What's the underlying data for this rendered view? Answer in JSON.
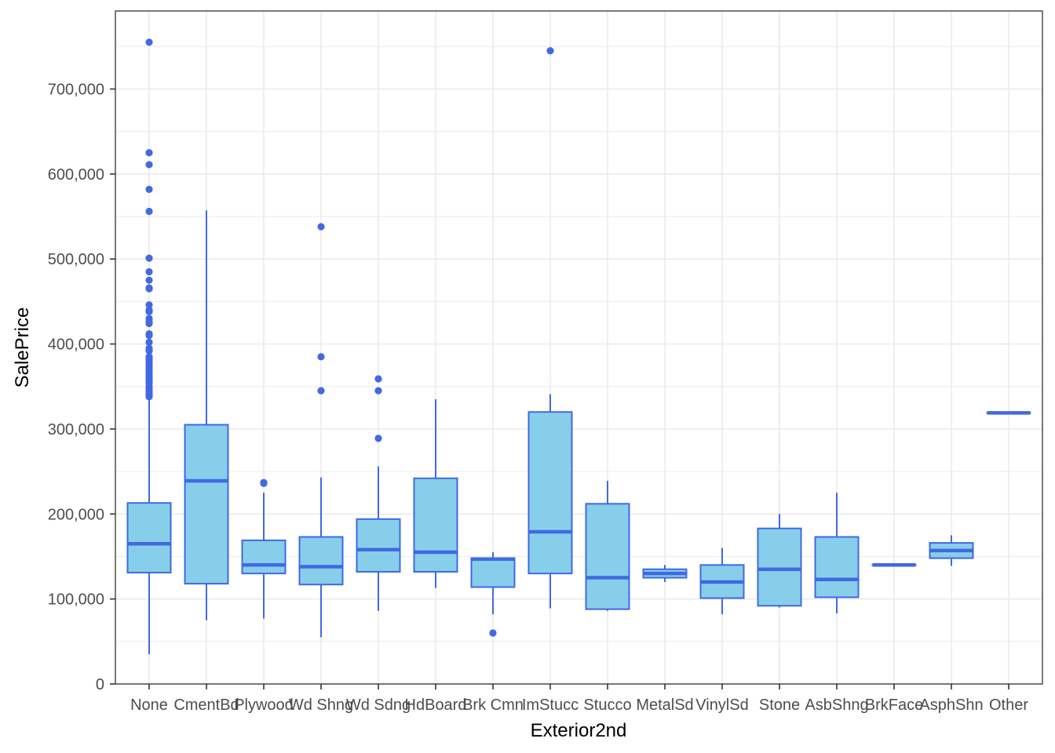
{
  "chart_data": {
    "type": "boxplot",
    "title": "",
    "xlabel": "Exterior2nd",
    "ylabel": "SalePrice",
    "ylim": [
      0,
      780000
    ],
    "yticks": [
      0,
      100000,
      200000,
      300000,
      400000,
      500000,
      600000,
      700000
    ],
    "ytick_labels": [
      "0",
      "100,000",
      "200,000",
      "300,000",
      "400,000",
      "500,000",
      "600,000",
      "700,000"
    ],
    "grid": true,
    "legend": "none",
    "colors": {
      "fill": "#87ceeb",
      "stroke": "#4169e1",
      "grid": "#ebebeb",
      "axis": "#333333"
    },
    "categories": [
      "None",
      "CmentBd",
      "Plywood",
      "Wd Shng",
      "Wd Sdng",
      "HdBoard",
      "Brk Cmn",
      "ImStucc",
      "Stucco",
      "MetalSd",
      "VinylSd",
      "Stone",
      "AsbShng",
      "BrkFace",
      "AsphShn",
      "Other"
    ],
    "boxes": [
      {
        "name": "None",
        "min": 35000,
        "q1": 131000,
        "median": 165000,
        "q3": 213000,
        "max": 336000,
        "outliers": [
          755000,
          625000,
          611000,
          582000,
          556000,
          501000,
          485000,
          475000,
          466000,
          465000,
          446000,
          440000,
          438000,
          430000,
          426000,
          424000,
          412000,
          410000,
          402000,
          395000,
          392000,
          385000,
          383000,
          380000,
          377000,
          375000,
          372000,
          370000,
          367000,
          364000,
          361000,
          359000,
          356000,
          354000,
          350000,
          348000,
          345000,
          342000,
          340000,
          338000
        ]
      },
      {
        "name": "CmentBd",
        "min": 75000,
        "q1": 118000,
        "median": 239000,
        "q3": 305000,
        "max": 557000,
        "outliers": []
      },
      {
        "name": "Plywood",
        "min": 77000,
        "q1": 130000,
        "median": 140000,
        "q3": 169000,
        "max": 225000,
        "outliers": [
          236000,
          237000
        ]
      },
      {
        "name": "Wd Shng",
        "min": 55000,
        "q1": 117000,
        "median": 138000,
        "q3": 173000,
        "max": 243000,
        "outliers": [
          538000,
          385000,
          345000
        ]
      },
      {
        "name": "Wd Sdng",
        "min": 86000,
        "q1": 132000,
        "median": 158000,
        "q3": 194000,
        "max": 256000,
        "outliers": [
          359000,
          345000,
          289000
        ]
      },
      {
        "name": "HdBoard",
        "min": 113000,
        "q1": 132000,
        "median": 155000,
        "q3": 242000,
        "max": 335000,
        "outliers": []
      },
      {
        "name": "Brk Cmn",
        "min": 82000,
        "q1": 114000,
        "median": 147000,
        "q3": 148000,
        "max": 155000,
        "outliers": [
          60000
        ]
      },
      {
        "name": "ImStucc",
        "min": 89000,
        "q1": 130000,
        "median": 179000,
        "q3": 320000,
        "max": 341000,
        "outliers": [
          745000
        ]
      },
      {
        "name": "Stucco",
        "min": 86000,
        "q1": 88000,
        "median": 125000,
        "q3": 212000,
        "max": 239000,
        "outliers": []
      },
      {
        "name": "MetalSd",
        "min": 120000,
        "q1": 125000,
        "median": 130000,
        "q3": 135000,
        "max": 140000,
        "outliers": []
      },
      {
        "name": "VinylSd",
        "min": 82000,
        "q1": 101000,
        "median": 120000,
        "q3": 140000,
        "max": 160000,
        "outliers": []
      },
      {
        "name": "Stone",
        "min": 90000,
        "q1": 92000,
        "median": 135000,
        "q3": 183000,
        "max": 200000,
        "outliers": []
      },
      {
        "name": "AsbShng",
        "min": 83000,
        "q1": 102000,
        "median": 123000,
        "q3": 173000,
        "max": 225000,
        "outliers": []
      },
      {
        "name": "BrkFace",
        "min": 140000,
        "q1": 140000,
        "median": 140000,
        "q3": 140000,
        "max": 140000,
        "outliers": []
      },
      {
        "name": "AsphShn",
        "min": 139000,
        "q1": 148000,
        "median": 157000,
        "q3": 166000,
        "max": 175000,
        "outliers": []
      },
      {
        "name": "Other",
        "min": 319000,
        "q1": 319000,
        "median": 319000,
        "q3": 319000,
        "max": 319000,
        "outliers": []
      }
    ]
  }
}
